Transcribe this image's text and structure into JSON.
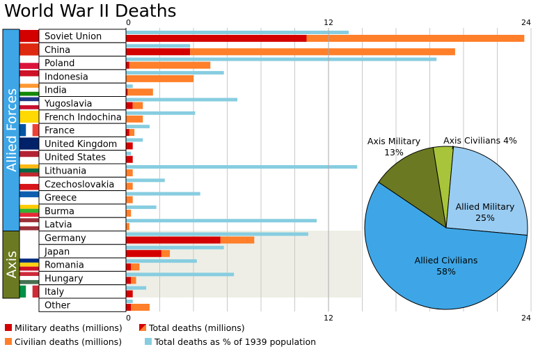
{
  "chart_data": [
    {
      "type": "bar",
      "title": "World War II Deaths",
      "groups": [
        {
          "label": "Allied Forces",
          "count": 15
        },
        {
          "label": "Axis",
          "count": 5
        }
      ],
      "x_ticks": [
        "0",
        "12",
        "24"
      ],
      "xlim": [
        0,
        24
      ],
      "categories": [
        "Soviet Union",
        "China",
        "Poland",
        "Indonesia",
        "India",
        "Yugoslavia",
        "French Indochina",
        "France",
        "United Kingdom",
        "United States",
        "Lithuania",
        "Czechoslovakia",
        "Greece",
        "Burma",
        "Latvia",
        "Germany",
        "Japan",
        "Romania",
        "Hungary",
        "Italy",
        "Other"
      ],
      "series": [
        {
          "name": "Military deaths (millions)",
          "color": "#d40000",
          "values": [
            10.7,
            3.8,
            0.2,
            0,
            0.1,
            0.4,
            0,
            0.2,
            0.4,
            0.4,
            0,
            0,
            0,
            0,
            0,
            5.6,
            2.1,
            0.3,
            0.3,
            0.4,
            0.3
          ]
        },
        {
          "name": "Civilian deaths (millions)",
          "color": "#ff7f2a",
          "values": [
            12.9,
            15.7,
            4.8,
            4,
            1.5,
            0.6,
            1,
            0.3,
            0,
            0,
            0.4,
            0.4,
            0.4,
            0.3,
            0.2,
            2,
            0.5,
            0.5,
            0.3,
            0,
            1.1
          ]
        },
        {
          "name": "Total deaths as % of 1939 population",
          "color": "#87cde0",
          "percent_values": [
            13.2,
            3.8,
            18.4,
            5.8,
            0.4,
            6.6,
            4.1,
            1.4,
            1,
            0.3,
            13.7,
            2.3,
            4.4,
            1.8,
            11.3,
            10.8,
            5.8,
            4.2,
            6.4,
            1.2,
            0.4
          ]
        }
      ],
      "legend": [
        {
          "label": "Military deaths (millions)",
          "color": "#d40000"
        },
        {
          "label": "Total deaths (millions)",
          "color": "#d40000"
        },
        {
          "label": "Civilian deaths (millions)",
          "color": "#ff7f2a"
        },
        {
          "label": "Total deaths as % of 1939 population",
          "color": "#87cde0"
        }
      ],
      "legend_position": "bottom",
      "grid": true
    },
    {
      "type": "pie",
      "slices": [
        {
          "label": "Axis Military",
          "value": 13,
          "display": "13%",
          "color": "#6b7a22"
        },
        {
          "label": "Axis Civilians",
          "value": 4,
          "display": "4%",
          "color": "#a8c43a"
        },
        {
          "label": "Allied Military",
          "value": 25,
          "display": "25%",
          "color": "#99ccf2"
        },
        {
          "label": "Allied Civilians",
          "value": 58,
          "display": "58%",
          "color": "#3ea6e6"
        }
      ]
    }
  ]
}
